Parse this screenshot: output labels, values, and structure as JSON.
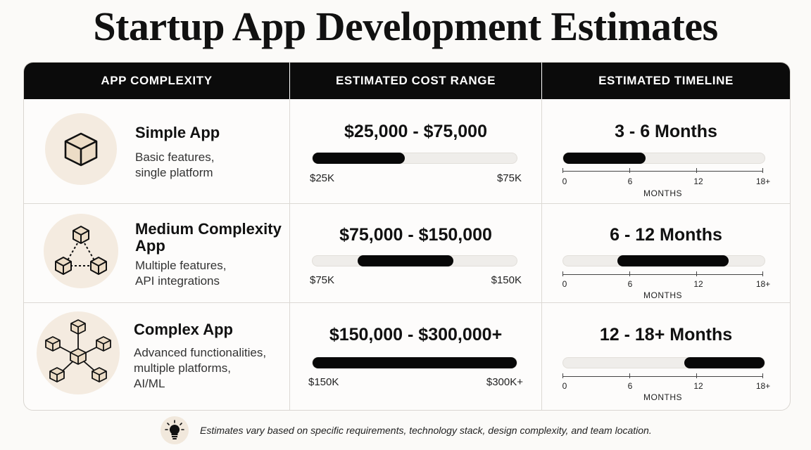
{
  "title": "Startup App Development Estimates",
  "header": {
    "col1": "APP COMPLEXITY",
    "col2": "ESTIMATED COST RANGE",
    "col3": "ESTIMATED TIMELINE"
  },
  "rows": [
    {
      "icon": "single-cube-icon",
      "name_lines": [
        "Simple App"
      ],
      "desc_lines": [
        "Basic features,",
        "single platform"
      ],
      "cost": "$25,000 - $75,000",
      "cost_min_label": "$25K",
      "cost_max_label": "$75K",
      "cost_fill": [
        0.0,
        0.45
      ],
      "timeline": "3 - 6 Months",
      "timeline_fill": [
        0.0,
        0.41
      ]
    },
    {
      "icon": "three-cubes-network-icon",
      "name_lines": [
        "Medium Complexity",
        "App"
      ],
      "desc_lines": [
        "Multiple features,",
        "API integrations"
      ],
      "cost": "$75,000 - $150,000",
      "cost_min_label": "$75K",
      "cost_max_label": "$150K",
      "cost_fill": [
        0.22,
        0.69
      ],
      "timeline": "6 - 12 Months",
      "timeline_fill": [
        0.27,
        0.82
      ]
    },
    {
      "icon": "hub-cubes-network-icon",
      "name_lines": [
        "Complex App"
      ],
      "desc_lines": [
        "Advanced functionalities,",
        "multiple platforms,",
        "AI/ML"
      ],
      "cost": "$150,000 - $300,000+",
      "cost_min_label": "$150K",
      "cost_max_label": "$300K+",
      "cost_fill": [
        0.0,
        1.0
      ],
      "timeline": "12 - 18+ Months",
      "timeline_fill": [
        0.6,
        1.0
      ]
    }
  ],
  "axis": {
    "ticks": [
      "0",
      "6",
      "12",
      "18+"
    ],
    "unit": "MONTHS"
  },
  "footer": {
    "icon": "lightbulb-icon",
    "text": "Estimates vary based on specific requirements, technology stack, design complexity, and team location."
  },
  "colors": {
    "header_bg": "#0b0b0b",
    "bar_fill": "#080808",
    "track": "#efedea",
    "icon_bg": "#f4ebe0"
  }
}
